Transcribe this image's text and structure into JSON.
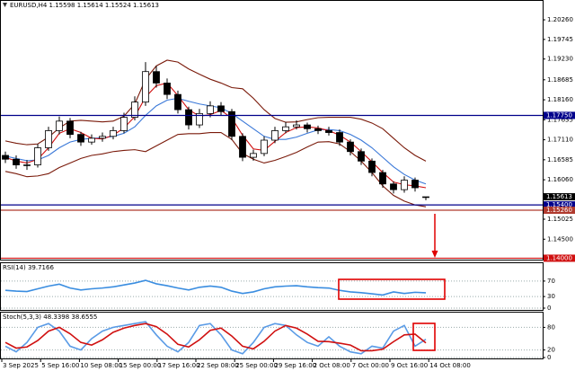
{
  "chart_data": [
    {
      "type": "candlestick",
      "title": "EURUSD,H4  1.15598 1.15614 1.15524 1.15613",
      "open": [
        1.167,
        1.166,
        1.1645,
        1.1645,
        1.169,
        1.1735,
        1.176,
        1.1725,
        1.1705,
        1.1715,
        1.172,
        1.1735,
        1.177,
        1.181,
        1.189,
        1.186,
        1.183,
        1.179,
        1.175,
        1.178,
        1.18,
        1.1785,
        1.172,
        1.1665,
        1.1675,
        1.171,
        1.1735,
        1.1745,
        1.175,
        1.174,
        1.1735,
        1.173,
        1.1705,
        1.168,
        1.1655,
        1.1625,
        1.1595,
        1.158,
        1.1605,
        1.15598
      ],
      "high": [
        1.168,
        1.167,
        1.1658,
        1.17,
        1.1745,
        1.1772,
        1.1768,
        1.1732,
        1.1725,
        1.173,
        1.1745,
        1.1782,
        1.1825,
        1.1915,
        1.1905,
        1.1872,
        1.184,
        1.1798,
        1.1792,
        1.1812,
        1.181,
        1.1792,
        1.1728,
        1.1685,
        1.172,
        1.1745,
        1.1758,
        1.1762,
        1.1756,
        1.1748,
        1.1745,
        1.1738,
        1.1712,
        1.1688,
        1.1662,
        1.1632,
        1.1602,
        1.1615,
        1.1612,
        1.15614
      ],
      "low": [
        1.165,
        1.1635,
        1.1632,
        1.1638,
        1.1682,
        1.1725,
        1.1715,
        1.1695,
        1.1698,
        1.1706,
        1.1712,
        1.1728,
        1.1762,
        1.18,
        1.1848,
        1.1818,
        1.178,
        1.1738,
        1.1742,
        1.177,
        1.1775,
        1.171,
        1.1655,
        1.1656,
        1.1668,
        1.1702,
        1.1728,
        1.1738,
        1.173,
        1.1726,
        1.1722,
        1.1695,
        1.167,
        1.1645,
        1.1615,
        1.1585,
        1.157,
        1.1572,
        1.1575,
        1.15524
      ],
      "close": [
        1.166,
        1.1645,
        1.1645,
        1.169,
        1.1735,
        1.176,
        1.1725,
        1.1705,
        1.1715,
        1.172,
        1.1735,
        1.177,
        1.181,
        1.189,
        1.186,
        1.183,
        1.179,
        1.175,
        1.178,
        1.18,
        1.1785,
        1.172,
        1.1665,
        1.1675,
        1.171,
        1.1735,
        1.1745,
        1.175,
        1.174,
        1.1735,
        1.173,
        1.1705,
        1.168,
        1.1655,
        1.1625,
        1.1595,
        1.158,
        1.1605,
        1.1585,
        1.15613
      ],
      "up_color": "#ffffff",
      "down_color": "#000000",
      "wick_color": "#000000",
      "series": [
        {
          "color": "#7a1a0a",
          "values": [
            1.1708,
            1.1702,
            1.1698,
            1.17,
            1.1718,
            1.1742,
            1.176,
            1.1762,
            1.176,
            1.1758,
            1.176,
            1.1773,
            1.1805,
            1.187,
            1.1905,
            1.192,
            1.1915,
            1.1897,
            1.1883,
            1.187,
            1.186,
            1.1848,
            1.1845,
            1.182,
            1.179,
            1.1767,
            1.1757,
            1.1758,
            1.1764,
            1.1769,
            1.177,
            1.177,
            1.177,
            1.1765,
            1.1755,
            1.174,
            1.1715,
            1.169,
            1.167,
            1.1655
          ]
        },
        {
          "color": "#7a1a0a",
          "values": [
            1.1628,
            1.1622,
            1.1614,
            1.1616,
            1.1622,
            1.1638,
            1.165,
            1.1662,
            1.167,
            1.1674,
            1.168,
            1.1683,
            1.1685,
            1.168,
            1.1695,
            1.171,
            1.1725,
            1.1727,
            1.1727,
            1.173,
            1.173,
            1.1712,
            1.1675,
            1.166,
            1.165,
            1.1657,
            1.1667,
            1.1678,
            1.1692,
            1.1705,
            1.1706,
            1.17,
            1.168,
            1.1655,
            1.1625,
            1.159,
            1.1565,
            1.155,
            1.154,
            1.1535
          ]
        },
        {
          "color": "#3a78d8",
          "values": [
            1.1668,
            1.1662,
            1.1656,
            1.1658,
            1.167,
            1.169,
            1.1705,
            1.1712,
            1.1715,
            1.1716,
            1.172,
            1.1728,
            1.1745,
            1.1775,
            1.18,
            1.1815,
            1.182,
            1.1812,
            1.1805,
            1.18,
            1.1795,
            1.178,
            1.176,
            1.174,
            1.172,
            1.1712,
            1.1712,
            1.1718,
            1.1728,
            1.1737,
            1.1738,
            1.1735,
            1.1725,
            1.171,
            1.169,
            1.1665,
            1.164,
            1.162,
            1.1605,
            1.1595
          ]
        },
        {
          "color": "#d01010",
          "values": [
            1.1665,
            1.1655,
            1.165,
            1.166,
            1.169,
            1.1728,
            1.174,
            1.173,
            1.1715,
            1.1713,
            1.1723,
            1.1742,
            1.1772,
            1.1823,
            1.1853,
            1.186,
            1.1827,
            1.179,
            1.1773,
            1.1777,
            1.1788,
            1.1768,
            1.1723,
            1.1687,
            1.1683,
            1.1707,
            1.173,
            1.1743,
            1.1745,
            1.1742,
            1.1735,
            1.1723,
            1.1705,
            1.168,
            1.1653,
            1.1625,
            1.16,
            1.1593,
            1.159,
            1.1585
          ]
        }
      ],
      "ylim": [
        1.1394,
        1.2078
      ],
      "yticks": [
        {
          "value": 1.2026,
          "label": "1.20260"
        },
        {
          "value": 1.19745,
          "label": "1.19745"
        },
        {
          "value": 1.1923,
          "label": "1.19230"
        },
        {
          "value": 1.18685,
          "label": "1.18685"
        },
        {
          "value": 1.1816,
          "label": "1.18160"
        },
        {
          "value": 1.17635,
          "label": "1.17635"
        },
        {
          "value": 1.1711,
          "label": "1.17110"
        },
        {
          "value": 1.16585,
          "label": "1.16585"
        },
        {
          "value": 1.1606,
          "label": "1.16060"
        },
        {
          "value": 1.15025,
          "label": "1.15025"
        },
        {
          "value": 1.145,
          "label": "1.14500"
        }
      ],
      "levels": [
        {
          "value": 1.1775,
          "label": "1.17750",
          "color": "#00008b"
        },
        {
          "value": 1.154,
          "label": "1.15400",
          "color": "#00008b"
        },
        {
          "value": 1.1526,
          "label": "1.15260",
          "color": "#b03a2e"
        },
        {
          "value": 1.14,
          "label": "1.14000",
          "color": "#d01010"
        }
      ],
      "current_price": 1.15613,
      "grid": false
    },
    {
      "type": "line",
      "title": "RSI(14) 39.7166",
      "series": [
        {
          "color": "#3a8de0",
          "values": [
            46,
            44,
            43,
            50,
            57,
            62,
            52,
            47,
            50,
            52,
            55,
            60,
            65,
            72,
            63,
            58,
            52,
            47,
            54,
            57,
            54,
            44,
            38,
            42,
            50,
            55,
            57,
            58,
            55,
            53,
            52,
            46,
            42,
            40,
            37,
            34,
            42,
            38,
            41,
            39.7166
          ]
        }
      ],
      "ylim": [
        0,
        100
      ],
      "yticks": [
        70,
        30,
        0
      ],
      "grid": true
    },
    {
      "type": "line",
      "title": "Stoch(5,3,3) 48.3398 38.6555",
      "series": [
        {
          "color": "#5a9be6",
          "values": [
            30,
            15,
            40,
            80,
            90,
            70,
            30,
            20,
            50,
            70,
            80,
            85,
            90,
            95,
            60,
            30,
            15,
            40,
            85,
            90,
            60,
            20,
            10,
            40,
            80,
            90,
            85,
            60,
            40,
            30,
            55,
            30,
            15,
            10,
            30,
            25,
            70,
            85,
            30,
            48.3398
          ]
        },
        {
          "color": "#d01010",
          "values": [
            40,
            25,
            28,
            45,
            70,
            80,
            63,
            40,
            33,
            47,
            67,
            78,
            85,
            90,
            82,
            62,
            35,
            28,
            47,
            72,
            78,
            57,
            30,
            23,
            43,
            70,
            85,
            78,
            62,
            43,
            42,
            38,
            33,
            18,
            18,
            22,
            42,
            60,
            62,
            38.6555
          ]
        }
      ],
      "ylim": [
        0,
        100
      ],
      "yticks": [
        80,
        20,
        0
      ],
      "grid": true,
      "x_labels": [
        "3 Sep 2025",
        "5 Sep 16:00",
        "10 Sep 08:00",
        "15 Sep 00:00",
        "17 Sep 16:00",
        "22 Sep 08:00",
        "25 Sep 00:00",
        "29 Sep 16:00",
        "2 Oct 08:00",
        "7 Oct 00:00",
        "9 Oct 16:00",
        "14 Oct 08:00"
      ]
    }
  ]
}
